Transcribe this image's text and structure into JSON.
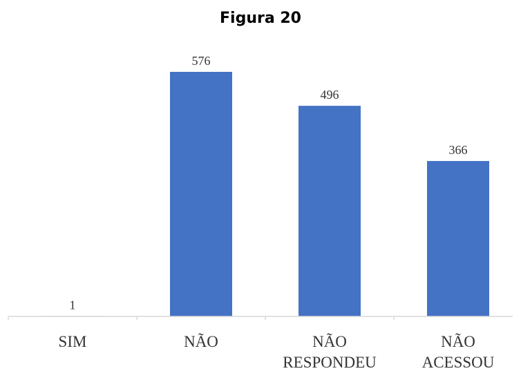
{
  "title": "Figura 20",
  "chart_data": {
    "type": "bar",
    "categories": [
      [
        "SIM"
      ],
      [
        "NÃO"
      ],
      [
        "NÃO",
        "RESPONDEU"
      ],
      [
        "NÃO",
        "ACESSOU"
      ]
    ],
    "values": [
      1,
      576,
      496,
      366
    ],
    "data_labels": [
      "1",
      "576",
      "496",
      "366"
    ],
    "ylim": [
      0,
      576
    ],
    "grid": false,
    "legend": "none",
    "bar_color": "#4472C4"
  }
}
